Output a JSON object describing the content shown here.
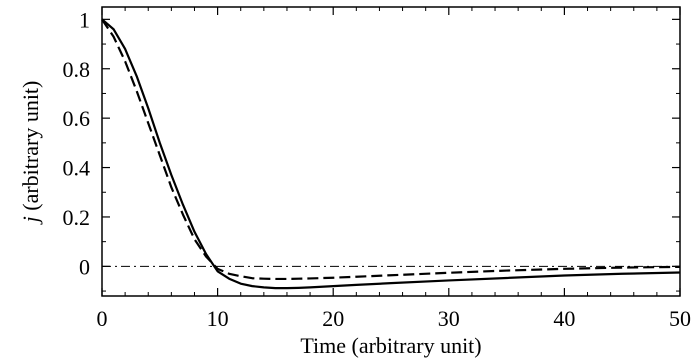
{
  "chart_data": {
    "type": "line",
    "xlabel": "Time (arbitrary unit)",
    "ylabel_italic": "j",
    "ylabel_rest": " (arbitrary unit)",
    "xlim": [
      0,
      50
    ],
    "ylim": [
      -0.12,
      1.05
    ],
    "x_ticks": [
      0,
      10,
      20,
      30,
      40,
      50
    ],
    "x_tick_labels": [
      "0",
      "10",
      "20",
      "30",
      "40",
      "50"
    ],
    "y_ticks": [
      0,
      0.2,
      0.4,
      0.6,
      0.8,
      1
    ],
    "y_tick_labels": [
      "0",
      "0.2",
      "0.4",
      "0.6",
      "0.8",
      "1"
    ],
    "reference_line": {
      "y": 0,
      "style": "dash-dot"
    },
    "grid": false,
    "series": [
      {
        "style": "solid",
        "x": [
          0,
          1,
          2,
          3,
          4,
          5,
          6,
          7,
          8,
          9,
          10,
          11,
          12,
          13,
          14,
          15,
          16,
          17,
          18,
          20,
          22,
          25,
          30,
          35,
          40,
          45,
          50
        ],
        "y": [
          1.0,
          0.96,
          0.88,
          0.77,
          0.64,
          0.5,
          0.37,
          0.25,
          0.14,
          0.05,
          -0.02,
          -0.05,
          -0.07,
          -0.08,
          -0.085,
          -0.088,
          -0.088,
          -0.087,
          -0.085,
          -0.08,
          -0.075,
          -0.068,
          -0.057,
          -0.047,
          -0.037,
          -0.03,
          -0.025
        ]
      },
      {
        "style": "dashed",
        "x": [
          0,
          1,
          2,
          3,
          4,
          5,
          6,
          7,
          8,
          9,
          10,
          11,
          12,
          13,
          14,
          15,
          16,
          17,
          18,
          20,
          22,
          25,
          30,
          35,
          40,
          45,
          50
        ],
        "y": [
          1.0,
          0.93,
          0.83,
          0.71,
          0.58,
          0.45,
          0.32,
          0.21,
          0.11,
          0.04,
          -0.01,
          -0.03,
          -0.04,
          -0.048,
          -0.05,
          -0.051,
          -0.051,
          -0.05,
          -0.049,
          -0.046,
          -0.042,
          -0.036,
          -0.026,
          -0.017,
          -0.01,
          -0.005,
          -0.002
        ]
      }
    ]
  }
}
